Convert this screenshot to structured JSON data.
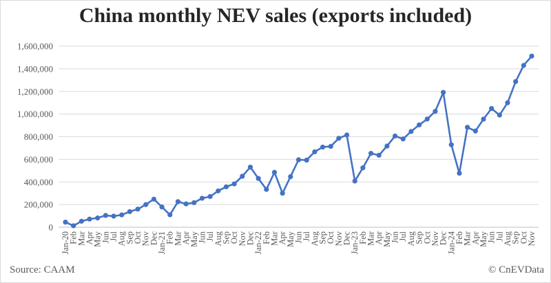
{
  "chart_data": {
    "type": "line",
    "title": "China monthly NEV sales (exports included)",
    "xlabel": "",
    "ylabel": "",
    "ylim": [
      0,
      1600000
    ],
    "yticks": [
      "0",
      "200,000",
      "400,000",
      "600,000",
      "800,000",
      "1,000,000",
      "1,200,000",
      "1,400,000",
      "1,600,000"
    ],
    "grid": true,
    "legend": "none",
    "color": "#4472c4",
    "categories": [
      "Jan-20",
      "Feb",
      "Mar",
      "Apr",
      "May",
      "Jun",
      "Jul",
      "Aug",
      "Sep",
      "Oct",
      "Nov",
      "Dec",
      "Jan-21",
      "Feb",
      "Mar",
      "Apr",
      "May",
      "Jun",
      "Jul",
      "Aug",
      "Sep",
      "Oct",
      "Nov",
      "Dec",
      "Jan-22",
      "Feb",
      "Mar",
      "Apr",
      "May",
      "Jun",
      "Jul",
      "Aug",
      "Sep",
      "Oct",
      "Nov",
      "Dec",
      "Jan-23",
      "Feb",
      "Mar",
      "Apr",
      "May",
      "Jun",
      "Jul",
      "Aug",
      "Sep",
      "Oct",
      "Nov",
      "Dec",
      "Jan-24",
      "Feb",
      "Mar",
      "Apr",
      "May",
      "Jun",
      "Jul",
      "Aug",
      "Sep",
      "Oct",
      "Nov"
    ],
    "series": [
      {
        "values": [
          45000,
          13000,
          53000,
          72000,
          82000,
          104000,
          98000,
          109000,
          138000,
          160000,
          200000,
          248000,
          179000,
          110000,
          226000,
          206000,
          217000,
          256000,
          271000,
          321000,
          357000,
          383000,
          450000,
          531000,
          431000,
          334000,
          485000,
          300000,
          447000,
          596000,
          593000,
          666000,
          708000,
          714000,
          786000,
          815000,
          408000,
          525000,
          653000,
          636000,
          717000,
          806000,
          780000,
          846000,
          904000,
          956000,
          1024000,
          1191000,
          729000,
          477000,
          883000,
          850000,
          955000,
          1049000,
          991000,
          1100000,
          1287000,
          1430000,
          1512000
        ]
      }
    ]
  },
  "footer": {
    "source": "Source: CAAM",
    "copyright": "© CnEVData"
  }
}
